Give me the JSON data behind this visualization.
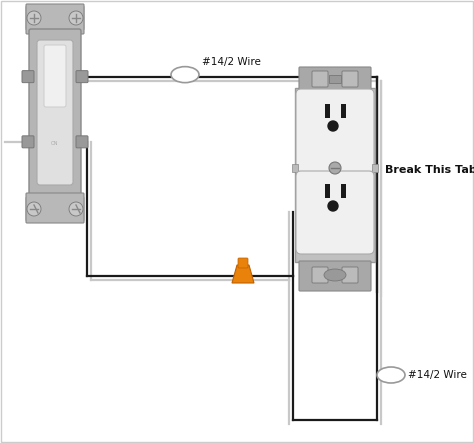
{
  "bg_color": "#ffffff",
  "wire_black": "#1a1a1a",
  "wire_white": "#c8c8c8",
  "switch_plate_color": "#b0b0b0",
  "switch_body_color": "#c0c0c0",
  "switch_toggle_color": "#e0e0e0",
  "outlet_body_color": "#e8e8e8",
  "outlet_face_color": "#f0f0f0",
  "outlet_slot_color": "#1a1a1a",
  "outlet_mount_color": "#a0a0a0",
  "orange_color": "#E8820A",
  "text_color": "#111111",
  "label_14_2_top": "#14/2 Wire",
  "label_14_2_bot": "#14/2 Wire",
  "label_break": "Break This Tab",
  "fig_width": 4.74,
  "fig_height": 4.43,
  "dpi": 100
}
